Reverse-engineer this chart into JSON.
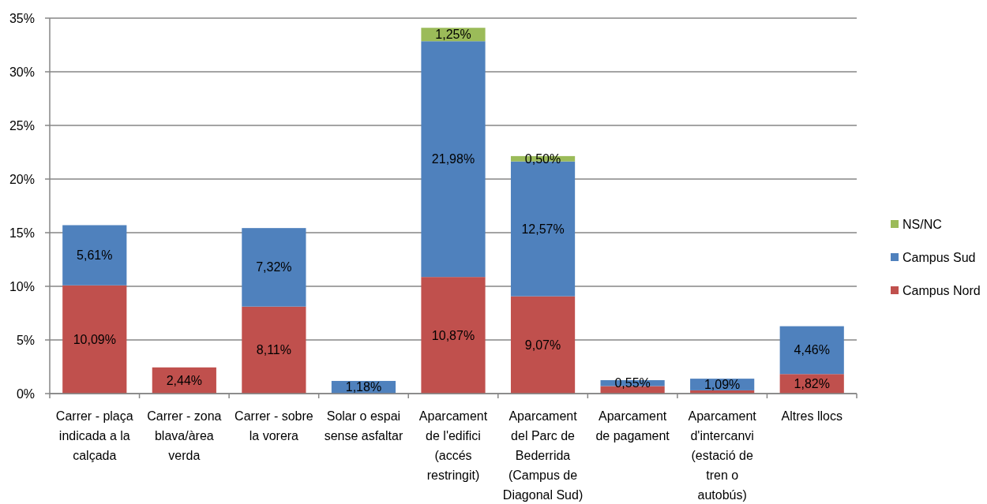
{
  "chart_data": {
    "type": "bar",
    "stacked": true,
    "categories": [
      "Carrer - plaça indicada a la calçada",
      "Carrer - zona blava/àrea verda",
      "Carrer - sobre la vorera",
      "Solar o espai sense asfaltar",
      "Aparcament de l'edifici (accés restringit)",
      "Aparcament del Parc de Bederrida (Campus de Diagonal Sud)",
      "Aparcament de pagament",
      "Aparcament d'intercanvi (estació de tren o autobús)",
      "Altres llocs"
    ],
    "series": [
      {
        "name": "Campus Nord",
        "color": "#c0504d",
        "values": [
          10.09,
          2.44,
          8.11,
          null,
          10.87,
          9.07,
          0.7,
          0.3,
          1.82
        ],
        "value_labels": [
          "10,09%",
          "2,44%",
          "8,11%",
          null,
          "10,87%",
          "9,07%",
          null,
          null,
          "1,82%"
        ]
      },
      {
        "name": "Campus Sud",
        "color": "#4f81bd",
        "values": [
          5.61,
          null,
          7.32,
          1.18,
          21.98,
          12.57,
          0.55,
          1.09,
          4.46
        ],
        "value_labels": [
          "5,61%",
          null,
          "7,32%",
          "1,18%",
          "21,98%",
          "12,57%",
          "0,55%",
          "1,09%",
          "4,46%"
        ]
      },
      {
        "name": "NS/NC",
        "color": "#9bbb59",
        "values": [
          null,
          null,
          null,
          null,
          1.25,
          0.5,
          null,
          null,
          null
        ],
        "value_labels": [
          null,
          null,
          null,
          null,
          "1,25%",
          "0,50%",
          null,
          null,
          null
        ]
      }
    ],
    "ylim": [
      0,
      35
    ],
    "yticks": [
      {
        "value": 0,
        "label": "0%"
      },
      {
        "value": 5,
        "label": "5%"
      },
      {
        "value": 10,
        "label": "10%"
      },
      {
        "value": 15,
        "label": "15%"
      },
      {
        "value": 20,
        "label": "20%"
      },
      {
        "value": 25,
        "label": "25%"
      },
      {
        "value": 30,
        "label": "30%"
      },
      {
        "value": 35,
        "label": "35%"
      }
    ],
    "grid": "y",
    "legend": "right"
  }
}
